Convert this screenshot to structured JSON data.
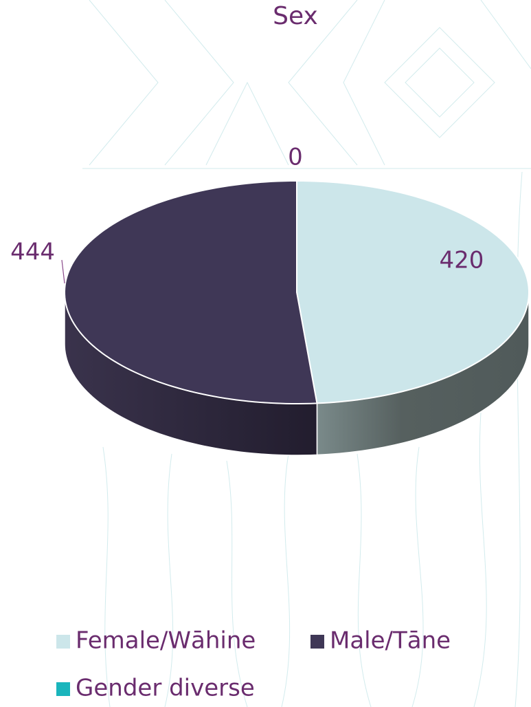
{
  "chart_data": {
    "type": "pie3d",
    "title": "Sex",
    "categories": [
      "Female/Wāhine",
      "Male/Tāne",
      "Gender diverse"
    ],
    "values": [
      420,
      444,
      0
    ],
    "colors": [
      "#cce6ea",
      "#3f3756",
      "#1ab5bc"
    ],
    "legend": "bottom"
  }
}
